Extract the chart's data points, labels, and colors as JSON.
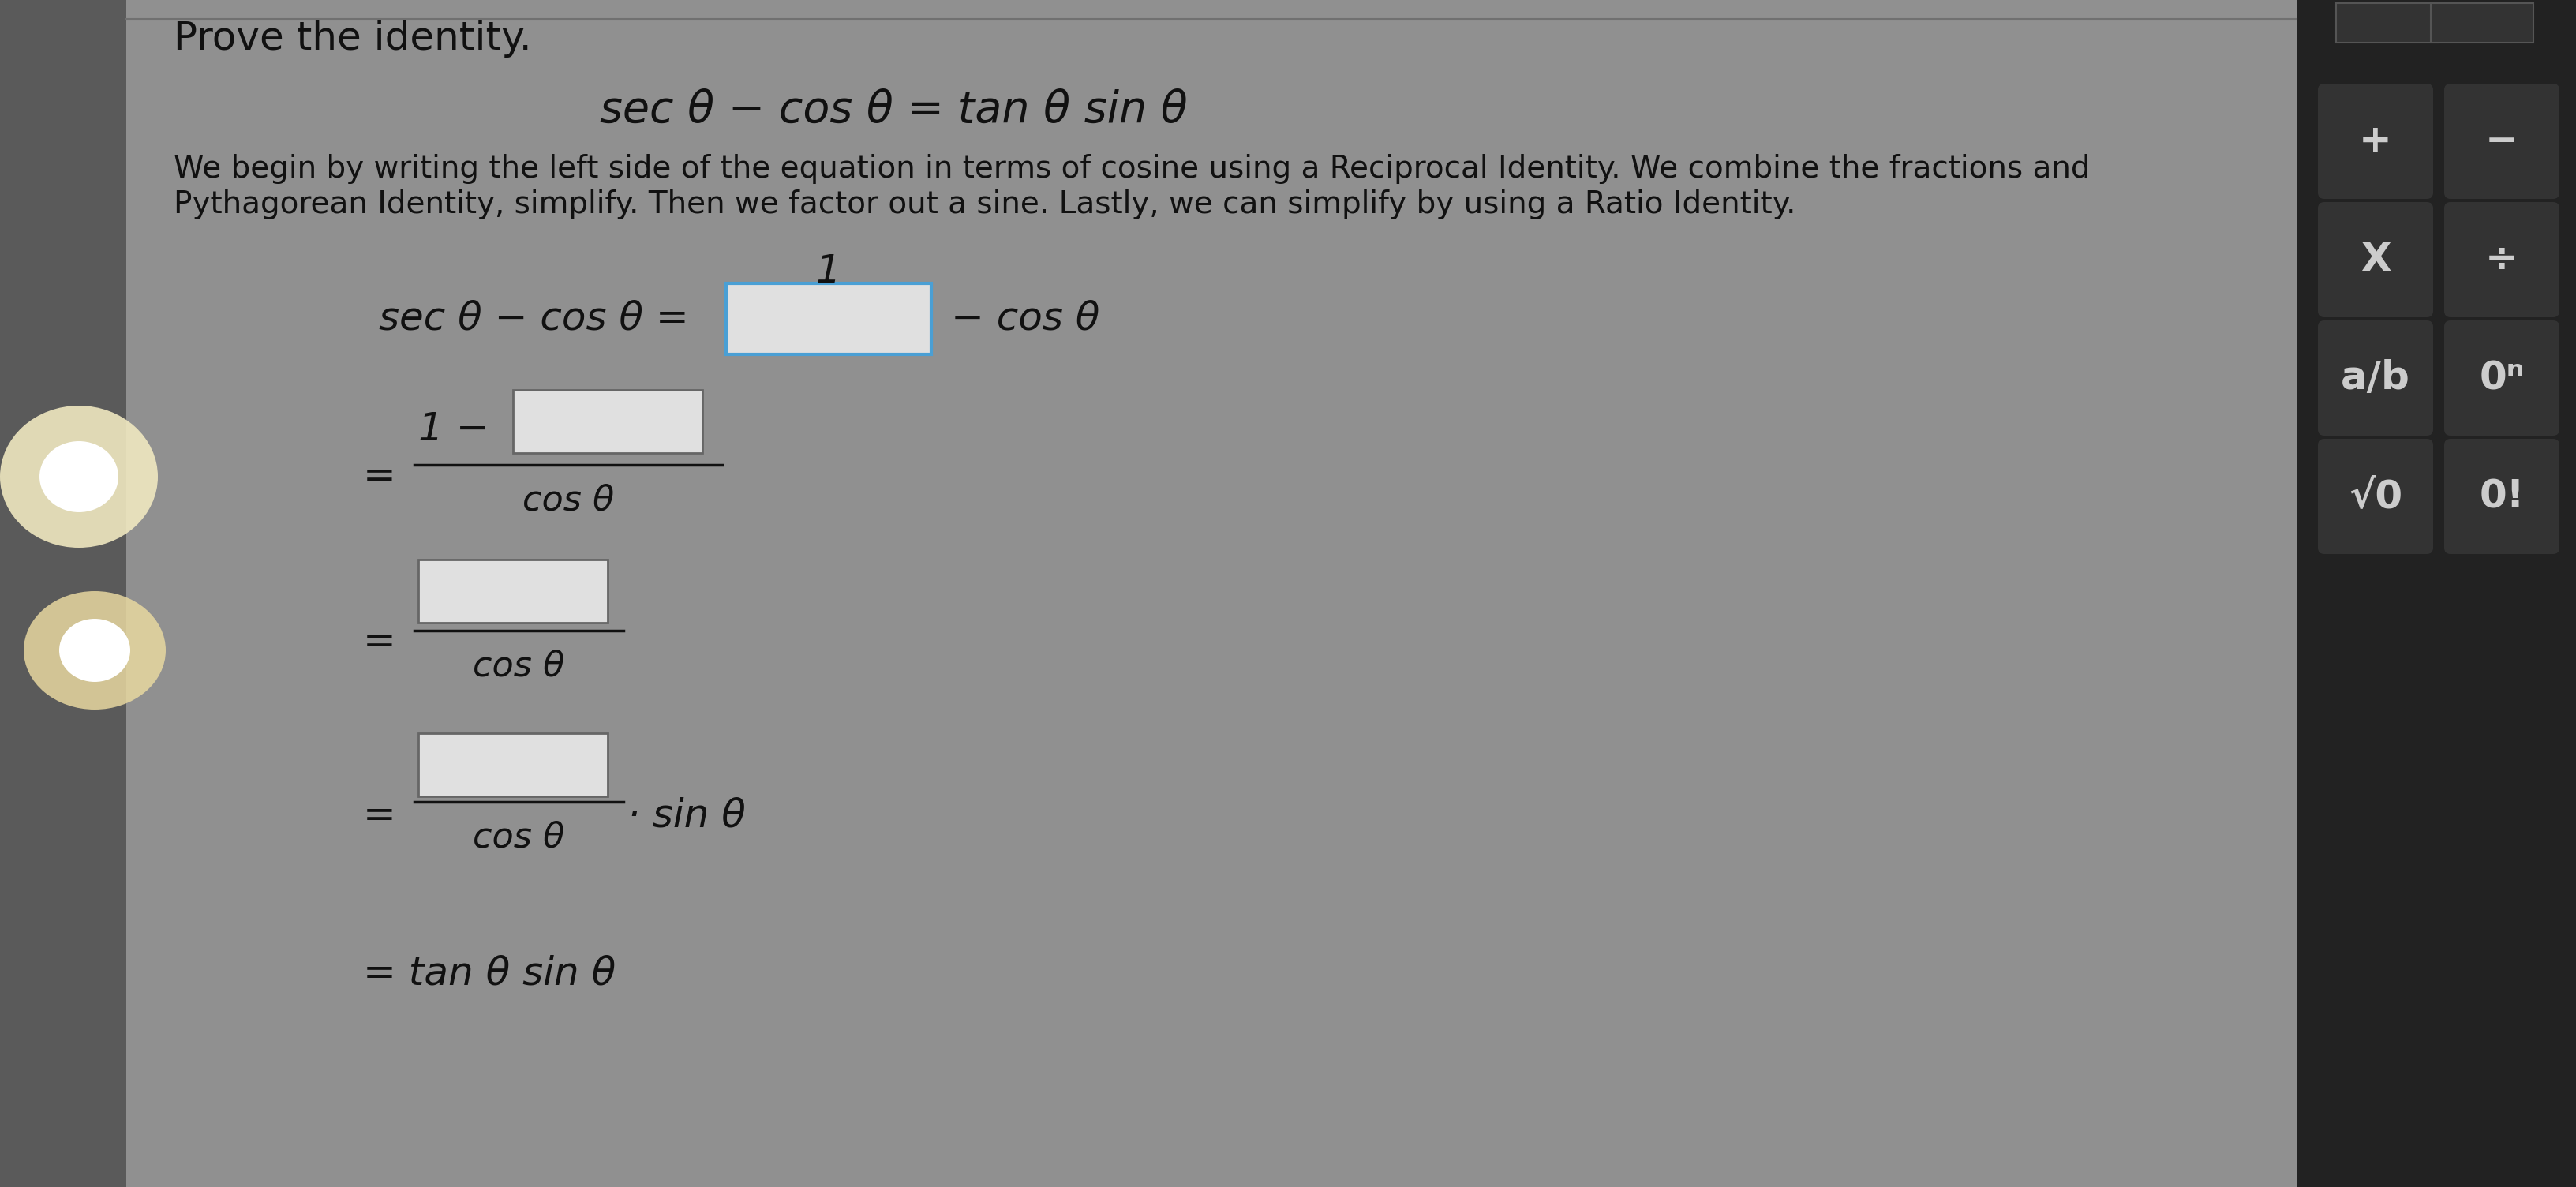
{
  "bg_color": "#8a8a8a",
  "main_bg": "#8c8c8c",
  "left_bg": "#6a6a6a",
  "calc_panel_color": "#222222",
  "calc_btn_color": "#333333",
  "calc_btn_border": "#444444",
  "text_color": "#111111",
  "box_color": "#e0e0e0",
  "box_border_first": "#4a9fd4",
  "box_border_other": "#666666",
  "title": "Prove the identity.",
  "equation_main": "sec θ − cos θ = tan θ sin θ",
  "desc1": "We begin by writing the left side of the equation in terms of cosine using a Reciprocal Identity. We combine the fractions and",
  "desc2": "Pythagorean Identity, simplify. Then we factor out a sine. Lastly, we can simplify by using a Ratio Identity.",
  "top_btn1": "",
  "top_btn2": ""
}
